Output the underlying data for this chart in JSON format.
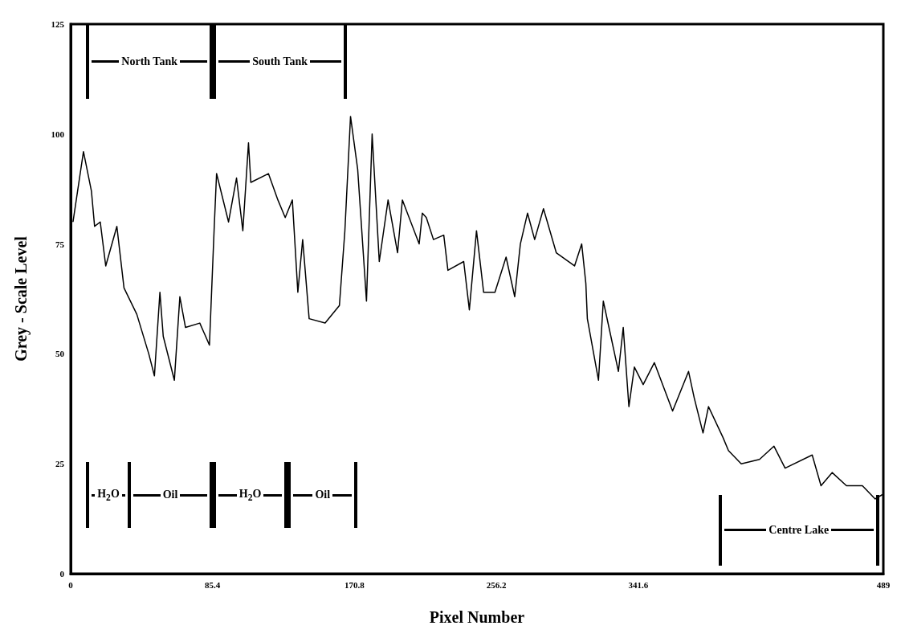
{
  "chart_data": {
    "type": "line",
    "xlabel": "Pixel Number",
    "ylabel": "Grey - Scale Level",
    "x": [
      1.4,
      7.7,
      12.5,
      14.4,
      17.8,
      21.1,
      27.8,
      32.1,
      39.8,
      47,
      50.4,
      53.7,
      55.7,
      62.4,
      65.7,
      69.1,
      77.7,
      83.5,
      86.4,
      87.8,
      95,
      99.8,
      103.6,
      107,
      108.4,
      119,
      124.7,
      129.1,
      133.4,
      136.7,
      139.6,
      143.5,
      153.1,
      161.7,
      165,
      168.4,
      172.7,
      178,
      181.4,
      185.7,
      191,
      196.7,
      199.6,
      209.7,
      211.6,
      214,
      218.3,
      224.5,
      227,
      236.5,
      239.9,
      244.2,
      248.5,
      255.3,
      262,
      267.2,
      270.6,
      274.9,
      279.2,
      284.5,
      292.2,
      303.2,
      307.5,
      310,
      310.9,
      317.6,
      320.5,
      329.6,
      332.5,
      335.9,
      339.2,
      344.5,
      351.2,
      362.2,
      371.8,
      375.2,
      380.5,
      383.8,
      392.5,
      395.8,
      403.5,
      414.5,
      423.2,
      429.9,
      446.2,
      451.5,
      458.2,
      466.8,
      476.4,
      484.1,
      488.5
    ],
    "series": [
      {
        "color": "#000000",
        "values": [
          80,
          96,
          87,
          79,
          80,
          70,
          79,
          65,
          59,
          50,
          45,
          64,
          54,
          44,
          63,
          56,
          57,
          52,
          79,
          91,
          80,
          90,
          78,
          98,
          89,
          91,
          85,
          81,
          85,
          64,
          76,
          58,
          57,
          61,
          78,
          104,
          92,
          62,
          100,
          71,
          85,
          73,
          85,
          75,
          82,
          81,
          76,
          77,
          69,
          71,
          60,
          78,
          64,
          64,
          72,
          63,
          75,
          82,
          76,
          83,
          73,
          70,
          75,
          66,
          58,
          44,
          62,
          46,
          56,
          38,
          47,
          43,
          48,
          37,
          46,
          40,
          32,
          38,
          31,
          28,
          25,
          26,
          29,
          24,
          27,
          20,
          23,
          20,
          20,
          17,
          18
        ]
      }
    ],
    "xlim": [
      0,
      489
    ],
    "xticks": [
      0,
      85.4,
      170.8,
      256.2,
      341.6,
      489
    ],
    "ylim": [
      0,
      125
    ],
    "yticks": [
      0,
      25,
      50,
      75,
      100,
      125
    ],
    "grid": false,
    "marker": "none",
    "annotations": [
      "North Tank",
      "South Tank",
      "H$_{2}$O",
      "Oil",
      "H$_{2}$O",
      "Oil",
      "Centre Lake"
    ]
  }
}
